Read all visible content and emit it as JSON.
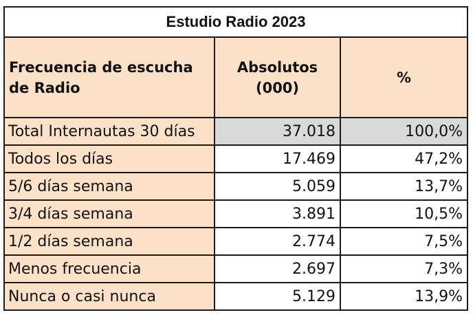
{
  "table": {
    "title": "Estudio Radio 2023",
    "headers": [
      "Frecuencia de escucha de Radio",
      "Absolutos (000)",
      "%"
    ],
    "rows": [
      {
        "label": "Total Internautas 30 días",
        "abs": "37.018",
        "pct": "100,0%"
      },
      {
        "label": "Todos los días",
        "abs": "17.469",
        "pct": "47,2%"
      },
      {
        "label": "5/6 días semana",
        "abs": "5.059",
        "pct": "13,7%"
      },
      {
        "label": "3/4 días semana",
        "abs": "3.891",
        "pct": "10,5%"
      },
      {
        "label": "1/2 días semana",
        "abs": "2.774",
        "pct": "7,5%"
      },
      {
        "label": "Menos frecuencia",
        "abs": "2.697",
        "pct": "7,3%"
      },
      {
        "label": "Nunca o casi nunca",
        "abs": "5.129",
        "pct": "13,9%"
      }
    ]
  },
  "colors": {
    "header_bg": "#fbe1c8",
    "total_bg": "#d9d9d9",
    "border": "#1a1a1a"
  }
}
